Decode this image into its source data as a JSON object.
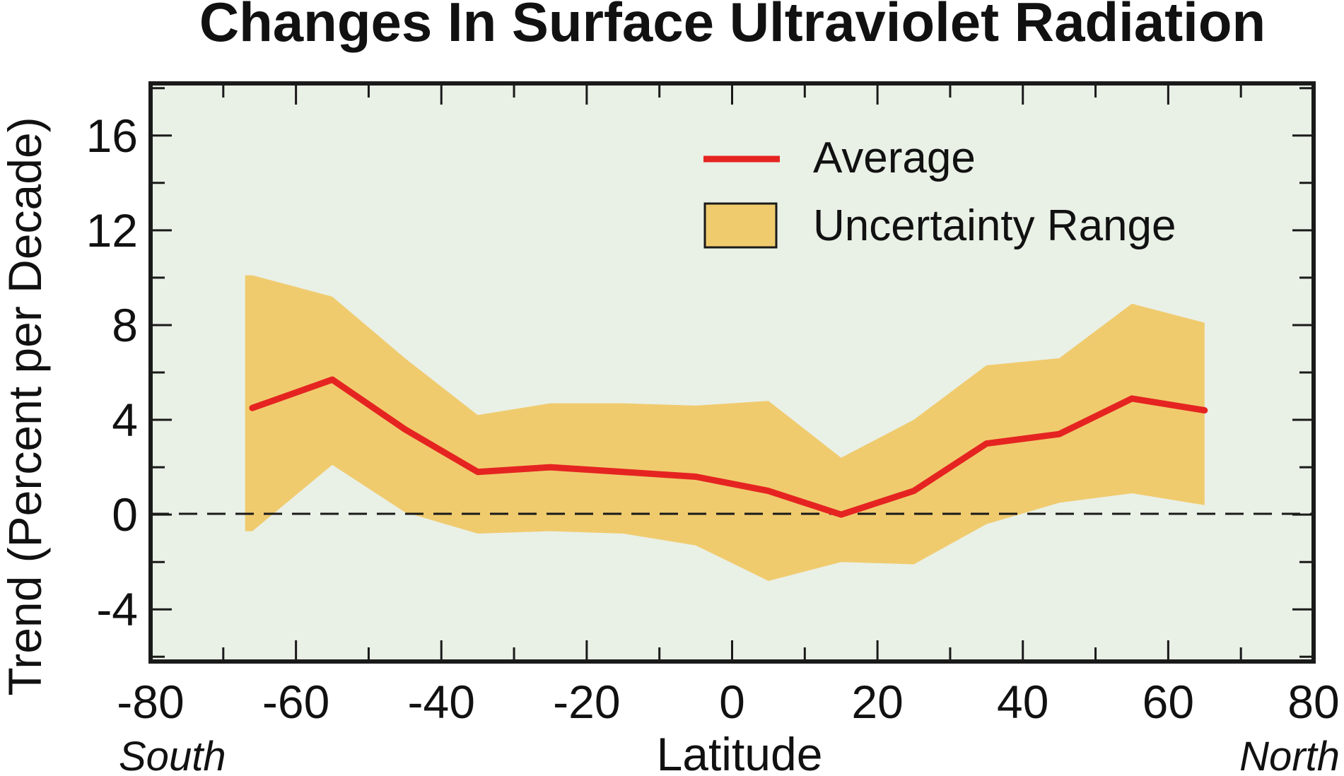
{
  "chart_data": {
    "type": "area",
    "title": "Changes In Surface Ultraviolet Radiation",
    "xlabel": "Latitude",
    "ylabel": "Trend (Percent per Decade)",
    "x_hemisphere_labels": {
      "left": "South",
      "right": "North"
    },
    "xlim": [
      -80,
      80
    ],
    "ylim": [
      -6.2,
      18.2
    ],
    "x_ticks": [
      -80,
      -60,
      -40,
      -20,
      0,
      20,
      40,
      60,
      80
    ],
    "x_tick_labels": [
      "-80",
      "-60",
      "-40",
      "-20",
      "0",
      "20",
      "40",
      "60",
      "80"
    ],
    "y_ticks": [
      16,
      12,
      8,
      4,
      0,
      -4
    ],
    "y_tick_labels": [
      "16",
      "12",
      "8",
      "4",
      "0",
      "-4"
    ],
    "reference_line": {
      "y": 0,
      "style": "dashed"
    },
    "legend_position": "top-right",
    "series": [
      {
        "name": "Average",
        "kind": "line",
        "color": "#e52421",
        "x": [
          -66,
          -55,
          -45,
          -35,
          -25,
          -15,
          -5,
          5,
          15,
          25,
          35,
          45,
          55,
          65
        ],
        "values": [
          4.5,
          5.7,
          3.6,
          1.8,
          2.0,
          1.8,
          1.6,
          1.0,
          0.0,
          1.0,
          3.0,
          3.4,
          4.9,
          4.4
        ]
      },
      {
        "name": "Uncertainty Range",
        "kind": "band",
        "color": "#f0cb6e",
        "x": [
          -67,
          -66,
          -55,
          -45,
          -35,
          -25,
          -15,
          -5,
          5,
          15,
          25,
          35,
          45,
          55,
          65
        ],
        "upper": [
          10.1,
          10.1,
          9.2,
          6.6,
          4.2,
          4.7,
          4.7,
          4.6,
          4.8,
          2.4,
          4.0,
          6.3,
          6.6,
          8.9,
          8.1
        ],
        "lower": [
          -0.7,
          -0.7,
          2.1,
          0.1,
          -0.8,
          -0.7,
          -0.8,
          -1.3,
          -2.8,
          -2.0,
          -2.1,
          -0.4,
          0.5,
          0.9,
          0.4
        ]
      }
    ],
    "colors": {
      "plot_background": "#e9f0e6",
      "frame": "#1a1a1a",
      "average_line": "#e52421",
      "band_fill": "#f0cb6e"
    }
  }
}
